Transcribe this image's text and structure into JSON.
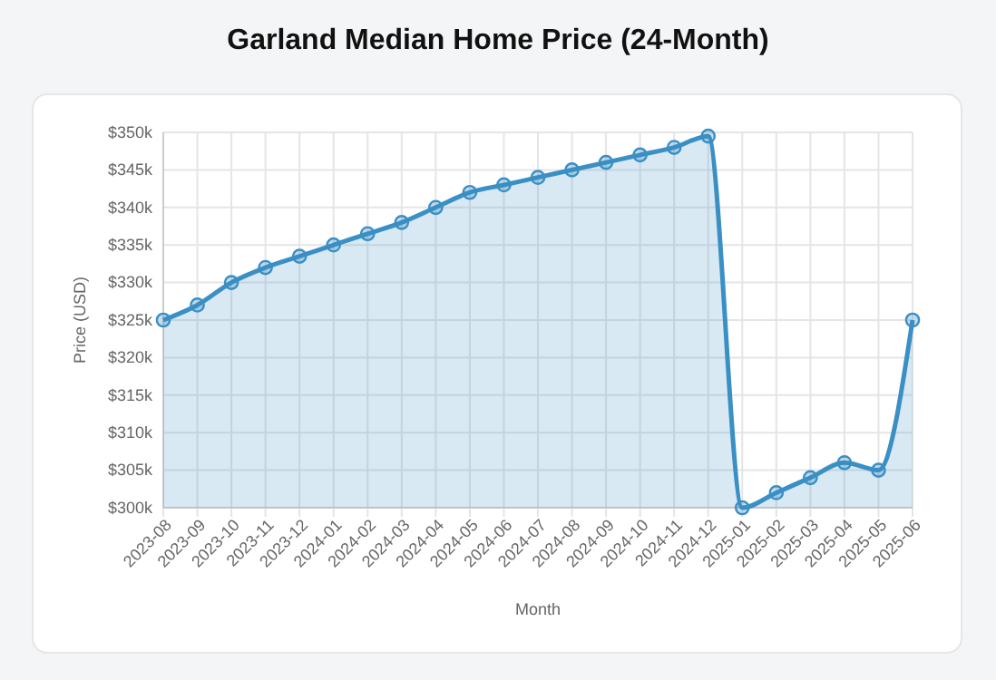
{
  "chart_data": {
    "type": "area",
    "title": "Garland Median Home Price (24-Month)",
    "xlabel": "Month",
    "ylabel": "Price (USD)",
    "categories": [
      "2023-08",
      "2023-09",
      "2023-10",
      "2023-11",
      "2023-12",
      "2024-01",
      "2024-02",
      "2024-03",
      "2024-04",
      "2024-05",
      "2024-06",
      "2024-07",
      "2024-08",
      "2024-09",
      "2024-10",
      "2024-11",
      "2024-12",
      "2025-01",
      "2025-02",
      "2025-03",
      "2025-04",
      "2025-05",
      "2025-06"
    ],
    "series": [
      {
        "color": "#3a8fc4",
        "values": [
          325,
          327,
          330,
          332,
          333.5,
          335,
          336.5,
          338,
          340,
          342,
          343,
          344,
          345,
          346,
          347,
          348,
          349.5,
          300,
          302,
          304,
          306,
          305,
          325
        ]
      }
    ],
    "ylim": [
      300,
      350
    ],
    "yticks": [
      {
        "value": 300,
        "label": "$300k"
      },
      {
        "value": 305,
        "label": "$305k"
      },
      {
        "value": 310,
        "label": "$310k"
      },
      {
        "value": 315,
        "label": "$315k"
      },
      {
        "value": 320,
        "label": "$320k"
      },
      {
        "value": 325,
        "label": "$325k"
      },
      {
        "value": 330,
        "label": "$330k"
      },
      {
        "value": 335,
        "label": "$335k"
      },
      {
        "value": 340,
        "label": "$340k"
      },
      {
        "value": 345,
        "label": "$345k"
      },
      {
        "value": 350,
        "label": "$350k"
      }
    ],
    "grid": true,
    "marker": "circle"
  }
}
